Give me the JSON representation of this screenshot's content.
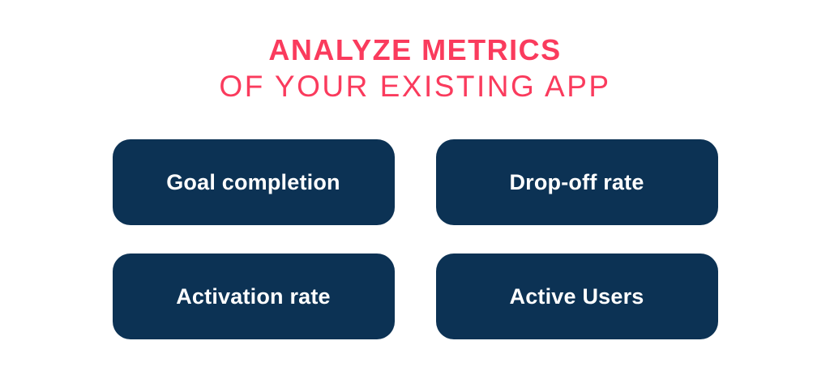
{
  "title": {
    "line1": "ANALYZE METRICS",
    "line2": "OF YOUR EXISTING APP"
  },
  "metrics": [
    {
      "label": "Goal completion"
    },
    {
      "label": "Drop-off rate"
    },
    {
      "label": "Activation rate"
    },
    {
      "label": "Active Users"
    }
  ],
  "colors": {
    "background": "#ffffff",
    "accent": "#fa3b5d",
    "card_bg": "#0c3254",
    "card_text": "#ffffff"
  }
}
